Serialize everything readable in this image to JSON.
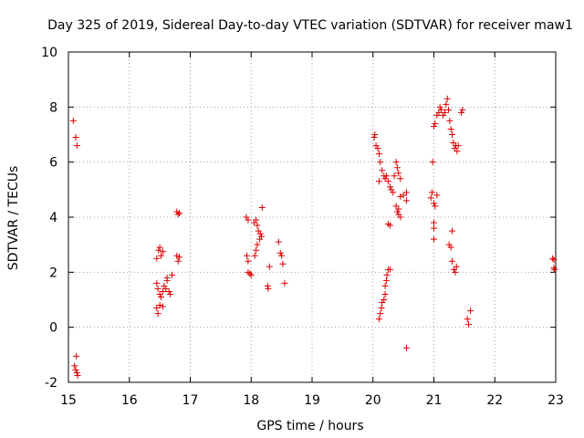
{
  "chart_data": {
    "type": "scatter",
    "title": "Day 325 of 2019, Sidereal Day-to-day VTEC variation (SDTVAR) for receiver maw1",
    "xlabel": "GPS time / hours",
    "ylabel": "SDTVAR / TECUs",
    "xlim": [
      15,
      23
    ],
    "ylim": [
      -2,
      10
    ],
    "grid": true,
    "marker": "+",
    "marker_color": "#dd0000",
    "x_ticks": [
      15,
      16,
      17,
      18,
      19,
      20,
      21,
      22,
      23
    ],
    "y_ticks": [
      -2,
      0,
      2,
      4,
      6,
      8,
      10
    ],
    "x_tick_labels": [
      "15",
      "16",
      "17",
      "18",
      "19",
      "20",
      "21",
      "22",
      "23"
    ],
    "y_tick_labels": [
      "-2",
      "0",
      "2",
      "4",
      "6",
      "8",
      "10"
    ],
    "series": [
      {
        "name": "SDTVAR",
        "points": [
          [
            15.08,
            7.5
          ],
          [
            15.12,
            6.9
          ],
          [
            15.14,
            6.6
          ],
          [
            15.13,
            -1.05
          ],
          [
            15.1,
            -1.4
          ],
          [
            15.12,
            -1.55
          ],
          [
            15.14,
            -1.65
          ],
          [
            15.15,
            -1.75
          ],
          [
            16.45,
            2.5
          ],
          [
            16.48,
            2.8
          ],
          [
            16.5,
            2.9
          ],
          [
            16.52,
            2.6
          ],
          [
            16.55,
            2.75
          ],
          [
            16.45,
            1.6
          ],
          [
            16.47,
            1.4
          ],
          [
            16.5,
            1.2
          ],
          [
            16.52,
            1.1
          ],
          [
            16.55,
            1.3
          ],
          [
            16.57,
            1.5
          ],
          [
            16.6,
            1.4
          ],
          [
            16.62,
            1.7
          ],
          [
            16.65,
            1.3
          ],
          [
            16.67,
            1.2
          ],
          [
            16.45,
            0.7
          ],
          [
            16.47,
            0.5
          ],
          [
            16.5,
            0.8
          ],
          [
            16.55,
            0.75
          ],
          [
            16.62,
            1.8
          ],
          [
            16.7,
            1.9
          ],
          [
            16.78,
            4.2
          ],
          [
            16.8,
            4.1
          ],
          [
            16.82,
            4.15
          ],
          [
            16.78,
            2.6
          ],
          [
            16.8,
            2.4
          ],
          [
            16.82,
            2.55
          ],
          [
            17.92,
            4.0
          ],
          [
            17.95,
            3.9
          ],
          [
            17.93,
            2.6
          ],
          [
            17.95,
            2.4
          ],
          [
            17.95,
            2.0
          ],
          [
            17.98,
            1.95
          ],
          [
            18.0,
            1.9
          ],
          [
            18.05,
            3.8
          ],
          [
            18.08,
            3.9
          ],
          [
            18.1,
            3.7
          ],
          [
            18.12,
            3.5
          ],
          [
            18.14,
            3.2
          ],
          [
            18.15,
            3.4
          ],
          [
            18.17,
            3.3
          ],
          [
            18.1,
            3.0
          ],
          [
            18.08,
            2.8
          ],
          [
            18.06,
            2.6
          ],
          [
            18.18,
            4.35
          ],
          [
            18.27,
            1.5
          ],
          [
            18.28,
            1.4
          ],
          [
            18.3,
            2.2
          ],
          [
            18.45,
            3.1
          ],
          [
            18.48,
            2.7
          ],
          [
            18.5,
            2.6
          ],
          [
            18.52,
            2.3
          ],
          [
            18.55,
            1.6
          ],
          [
            20.02,
            6.9
          ],
          [
            20.03,
            7.0
          ],
          [
            20.05,
            6.6
          ],
          [
            20.08,
            6.5
          ],
          [
            20.1,
            6.3
          ],
          [
            20.12,
            6.0
          ],
          [
            20.15,
            5.7
          ],
          [
            20.18,
            5.5
          ],
          [
            20.2,
            5.4
          ],
          [
            20.22,
            5.5
          ],
          [
            20.25,
            5.3
          ],
          [
            20.28,
            5.1
          ],
          [
            20.3,
            5.0
          ],
          [
            20.33,
            4.9
          ],
          [
            20.35,
            5.5
          ],
          [
            20.1,
            5.3
          ],
          [
            20.38,
            6.0
          ],
          [
            20.4,
            5.8
          ],
          [
            20.42,
            5.6
          ],
          [
            20.45,
            5.4
          ],
          [
            20.38,
            4.4
          ],
          [
            20.4,
            4.2
          ],
          [
            20.42,
            4.1
          ],
          [
            20.45,
            4.0
          ],
          [
            20.42,
            4.3
          ],
          [
            20.45,
            4.75
          ],
          [
            20.5,
            4.8
          ],
          [
            20.55,
            4.6
          ],
          [
            20.55,
            4.9
          ],
          [
            20.25,
            3.75
          ],
          [
            20.28,
            3.7
          ],
          [
            20.1,
            0.3
          ],
          [
            20.12,
            0.5
          ],
          [
            20.14,
            0.7
          ],
          [
            20.15,
            0.9
          ],
          [
            20.18,
            1.0
          ],
          [
            20.2,
            1.2
          ],
          [
            20.2,
            1.5
          ],
          [
            20.22,
            1.7
          ],
          [
            20.23,
            1.9
          ],
          [
            20.25,
            2.1
          ],
          [
            20.28,
            2.1
          ],
          [
            20.55,
            -0.75
          ],
          [
            20.95,
            4.7
          ],
          [
            20.97,
            4.9
          ],
          [
            21.0,
            4.5
          ],
          [
            21.02,
            4.4
          ],
          [
            21.05,
            4.8
          ],
          [
            20.98,
            6.0
          ],
          [
            21.0,
            3.8
          ],
          [
            21.0,
            3.6
          ],
          [
            21.0,
            3.2
          ],
          [
            21.0,
            7.3
          ],
          [
            21.02,
            7.4
          ],
          [
            21.05,
            7.7
          ],
          [
            21.08,
            7.8
          ],
          [
            21.1,
            8.0
          ],
          [
            21.12,
            7.9
          ],
          [
            21.15,
            7.7
          ],
          [
            21.18,
            7.8
          ],
          [
            21.2,
            8.1
          ],
          [
            21.22,
            8.3
          ],
          [
            21.24,
            7.9
          ],
          [
            21.26,
            7.5
          ],
          [
            21.28,
            7.2
          ],
          [
            21.3,
            7.0
          ],
          [
            21.32,
            6.7
          ],
          [
            21.34,
            6.5
          ],
          [
            21.36,
            6.6
          ],
          [
            21.38,
            6.4
          ],
          [
            21.4,
            6.6
          ],
          [
            21.45,
            7.8
          ],
          [
            21.47,
            7.9
          ],
          [
            21.25,
            3.0
          ],
          [
            21.28,
            2.9
          ],
          [
            21.3,
            3.5
          ],
          [
            21.3,
            2.4
          ],
          [
            21.33,
            2.1
          ],
          [
            21.35,
            2.0
          ],
          [
            21.37,
            2.2
          ],
          [
            21.55,
            0.3
          ],
          [
            21.57,
            0.1
          ],
          [
            21.6,
            0.6
          ],
          [
            22.95,
            2.5
          ],
          [
            22.97,
            2.45
          ],
          [
            22.97,
            2.15
          ],
          [
            22.98,
            2.1
          ]
        ]
      }
    ]
  }
}
